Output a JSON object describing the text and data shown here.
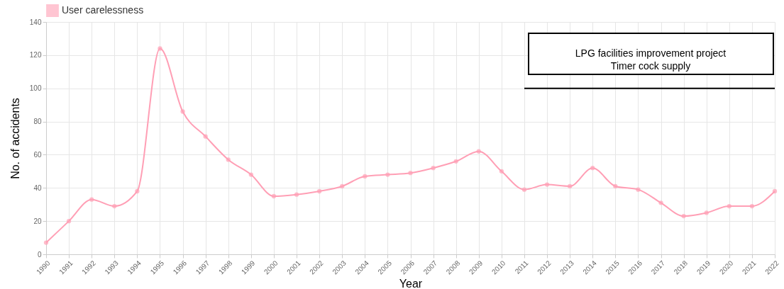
{
  "chart_data": {
    "type": "line",
    "xlabel": "Year",
    "ylabel": "No. of accidents",
    "categories": [
      "1990",
      "1991",
      "1992",
      "1993",
      "1994",
      "1995",
      "1996",
      "1997",
      "1998",
      "1999",
      "2000",
      "2001",
      "2002",
      "2003",
      "2004",
      "2005",
      "2006",
      "2007",
      "2008",
      "2009",
      "2010",
      "2011",
      "2012",
      "2013",
      "2014",
      "2015",
      "2016",
      "2017",
      "2018",
      "2019",
      "2020",
      "2021",
      "2022"
    ],
    "series": [
      {
        "name": "User carelessness",
        "color": "#ff9fb5",
        "values": [
          7,
          20,
          33,
          29,
          38,
          124,
          86,
          71,
          57,
          48,
          35,
          36,
          38,
          41,
          47,
          48,
          49,
          52,
          56,
          62,
          50,
          39,
          42,
          41,
          52,
          41,
          39,
          31,
          23,
          25,
          29,
          29,
          38
        ]
      }
    ],
    "ylim": [
      0,
      140
    ],
    "yticks": [
      0,
      20,
      40,
      60,
      80,
      100,
      120,
      140
    ],
    "grid": true,
    "legend": "top",
    "marker": "circle",
    "line_style": "solid",
    "ref_lines": [
      {
        "axis": "y",
        "value": 100,
        "label": "LPG facilities improvement project\nTimer cock supply",
        "color": "#000000"
      }
    ]
  }
}
